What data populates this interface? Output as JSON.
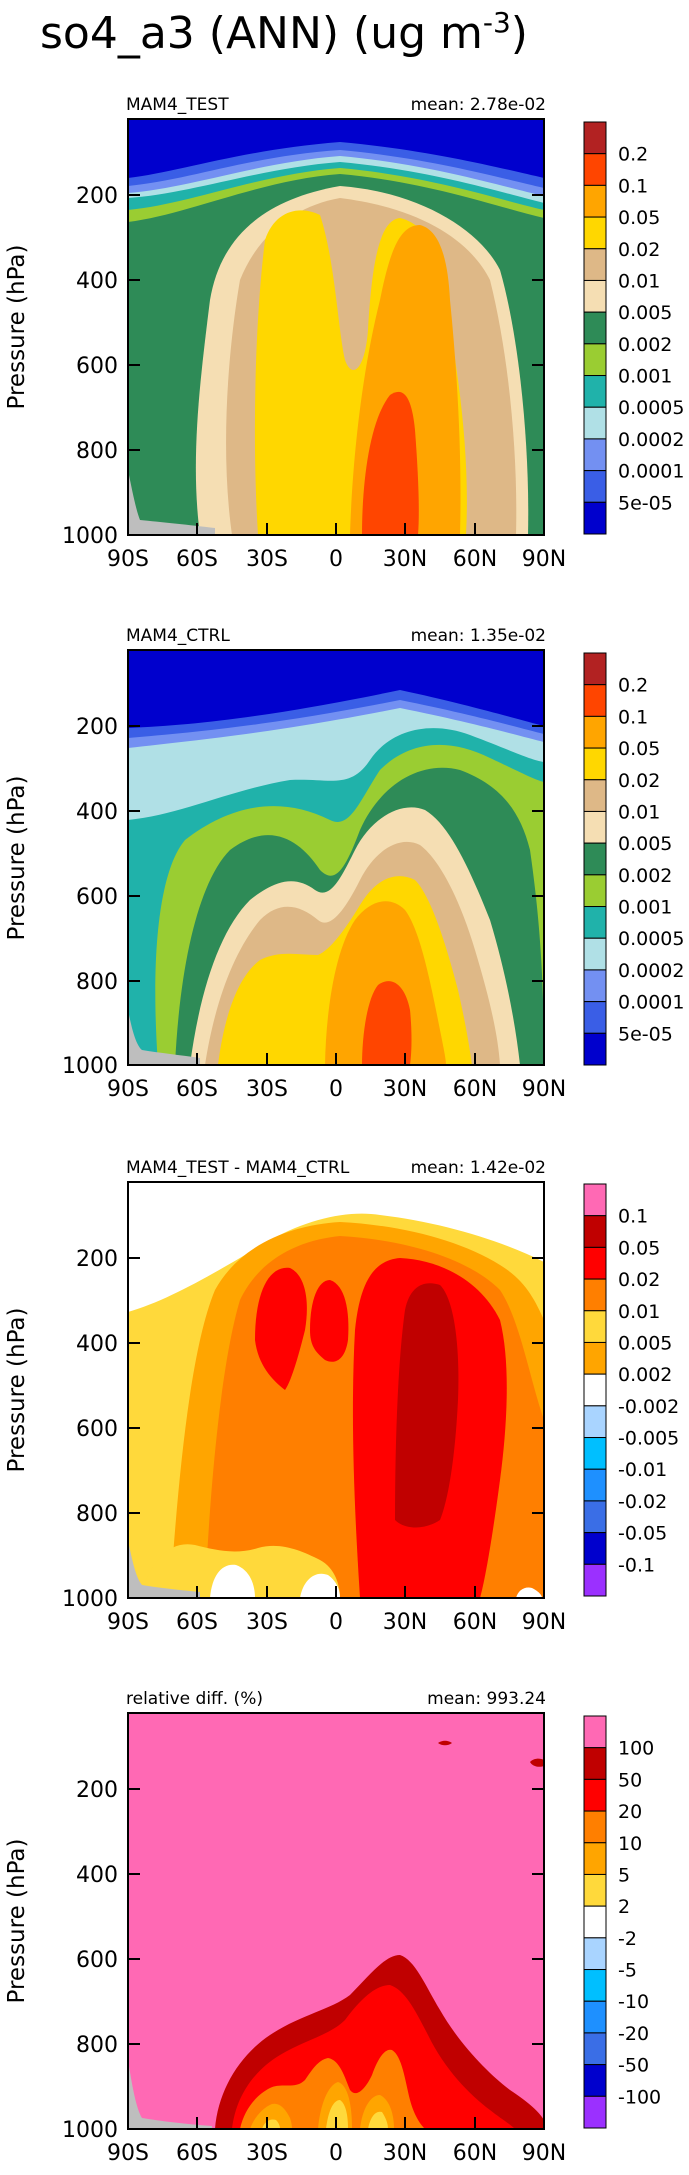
{
  "figure": {
    "title_base": "so4_a3 (ANN) (ug m",
    "title_sup": "-3",
    "title_close": ")"
  },
  "colors": {
    "blue1": "#0000cd",
    "blue2": "#3a5ee6",
    "blue3": "#7390f2",
    "cyan_lt": "#b0e0e6",
    "teal": "#20b2aa",
    "green_lt": "#9acd32",
    "green_dk": "#2e8b57",
    "cream": "#f5deb3",
    "tan": "#deb887",
    "yellow": "#ffd700",
    "orange": "#ffa500",
    "red_or": "#ff4500",
    "brick": "#b22222",
    "pink": "#ff69b4",
    "red": "#ff0000",
    "red_dk": "#c00000",
    "orange_dk": "#ff7f00",
    "yellow2": "#ffd93b",
    "lblue": "#a9d4ff",
    "lblue2": "#6ab4ff",
    "cyan": "#00bfff",
    "blue_m": "#1e90ff",
    "blue_m2": "#3a6ee6",
    "violet": "#9b30ff",
    "terrain": "#bebebe"
  },
  "chart_data": [
    {
      "type": "heatmap",
      "name": "MAM4_TEST",
      "stat_label": "mean:",
      "stat_value": "2.78e-02",
      "xlabel": "",
      "ylabel": "Pressure (hPa)",
      "xlim": [
        -90,
        90
      ],
      "ylim": [
        1000,
        0
      ],
      "x_ticks": [
        -90,
        -60,
        -30,
        0,
        30,
        60,
        90
      ],
      "x_tick_labels": [
        "90S",
        "60S",
        "30S",
        "0",
        "30N",
        "60N",
        "90N"
      ],
      "y_ticks": [
        200,
        400,
        600,
        800,
        1000
      ],
      "y_tick_labels": [
        "200",
        "400",
        "600",
        "800",
        "1000"
      ],
      "levels": [
        "5e-05",
        "0.0001",
        "0.0002",
        "0.0005",
        "0.001",
        "0.002",
        "0.005",
        "0.01",
        "0.02",
        "0.05",
        "0.1",
        "0.2"
      ],
      "level_colors": [
        "blue1",
        "blue2",
        "blue3",
        "cyan_lt",
        "teal",
        "green_lt",
        "green_dk",
        "cream",
        "tan",
        "yellow",
        "orange",
        "red_or",
        "brick"
      ]
    },
    {
      "type": "heatmap",
      "name": "MAM4_CTRL",
      "stat_label": "mean:",
      "stat_value": "1.35e-02",
      "xlabel": "",
      "ylabel": "Pressure (hPa)",
      "xlim": [
        -90,
        90
      ],
      "ylim": [
        1000,
        0
      ],
      "x_ticks": [
        -90,
        -60,
        -30,
        0,
        30,
        60,
        90
      ],
      "x_tick_labels": [
        "90S",
        "60S",
        "30S",
        "0",
        "30N",
        "60N",
        "90N"
      ],
      "y_ticks": [
        200,
        400,
        600,
        800,
        1000
      ],
      "y_tick_labels": [
        "200",
        "400",
        "600",
        "800",
        "1000"
      ],
      "levels": [
        "5e-05",
        "0.0001",
        "0.0002",
        "0.0005",
        "0.001",
        "0.002",
        "0.005",
        "0.01",
        "0.02",
        "0.05",
        "0.1",
        "0.2"
      ],
      "level_colors": [
        "blue1",
        "blue2",
        "blue3",
        "cyan_lt",
        "teal",
        "green_lt",
        "green_dk",
        "cream",
        "tan",
        "yellow",
        "orange",
        "red_or",
        "brick"
      ]
    },
    {
      "type": "heatmap",
      "name": "MAM4_TEST - MAM4_CTRL",
      "stat_label": "mean:",
      "stat_value": "1.42e-02",
      "xlabel": "",
      "ylabel": "Pressure (hPa)",
      "xlim": [
        -90,
        90
      ],
      "ylim": [
        1000,
        0
      ],
      "x_ticks": [
        -90,
        -60,
        -30,
        0,
        30,
        60,
        90
      ],
      "x_tick_labels": [
        "90S",
        "60S",
        "30S",
        "0",
        "30N",
        "60N",
        "90N"
      ],
      "y_ticks": [
        200,
        400,
        600,
        800,
        1000
      ],
      "y_tick_labels": [
        "200",
        "400",
        "600",
        "800",
        "1000"
      ],
      "levels": [
        "-0.1",
        "-0.05",
        "-0.02",
        "-0.01",
        "-0.005",
        "-0.002",
        "0.002",
        "0.005",
        "0.01",
        "0.02",
        "0.05",
        "0.1"
      ],
      "level_colors": [
        "violet",
        "blue1",
        "blue_m2",
        "blue_m",
        "cyan",
        "lblue",
        "white",
        "orange",
        "yellow2",
        "orange_dk",
        "red",
        "red_dk",
        "pink"
      ]
    },
    {
      "type": "heatmap",
      "name": "relative diff. (%)",
      "stat_label": "mean:",
      "stat_value": "993.24",
      "xlabel": "",
      "ylabel": "Pressure (hPa)",
      "xlim": [
        -90,
        90
      ],
      "ylim": [
        1000,
        0
      ],
      "x_ticks": [
        -90,
        -60,
        -30,
        0,
        30,
        60,
        90
      ],
      "x_tick_labels": [
        "90S",
        "60S",
        "30S",
        "0",
        "30N",
        "60N",
        "90N"
      ],
      "y_ticks": [
        200,
        400,
        600,
        800,
        1000
      ],
      "y_tick_labels": [
        "200",
        "400",
        "600",
        "800",
        "1000"
      ],
      "levels": [
        "-100",
        "-50",
        "-20",
        "-10",
        "-5",
        "-2",
        "2",
        "5",
        "10",
        "20",
        "50",
        "100"
      ],
      "level_colors": [
        "violet",
        "blue1",
        "blue_m2",
        "blue_m",
        "cyan",
        "lblue",
        "white",
        "yellow2",
        "orange",
        "orange_dk",
        "red",
        "red_dk",
        "pink"
      ]
    }
  ]
}
